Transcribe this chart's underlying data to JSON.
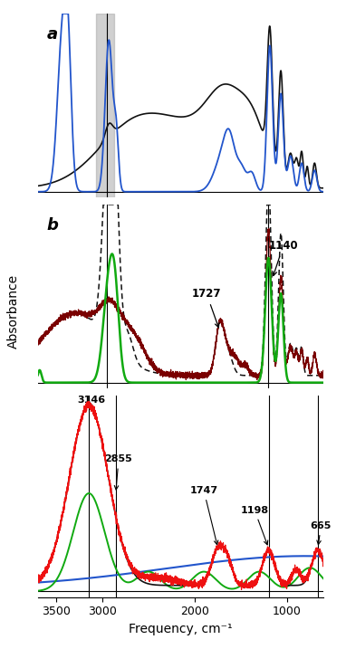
{
  "xmin": 3700,
  "xmax": 600,
  "colors": {
    "blue": "#2255cc",
    "black": "#111111",
    "red": "#ee1111",
    "green": "#11aa11",
    "dark_red": "#7a0000",
    "gray_band": "#aaaaaa"
  },
  "ylabel": "Absorbance",
  "xlabel": "Frequency, cm⁻¹",
  "xticks": [
    3500,
    3000,
    2000,
    1000
  ],
  "panel_a_gray": [
    3070,
    2870
  ],
  "panel_a_vline": 2950,
  "panel_b_vlines": [
    2950,
    1200
  ],
  "panel_c_vlines": [
    3146,
    2855,
    1198,
    665
  ]
}
